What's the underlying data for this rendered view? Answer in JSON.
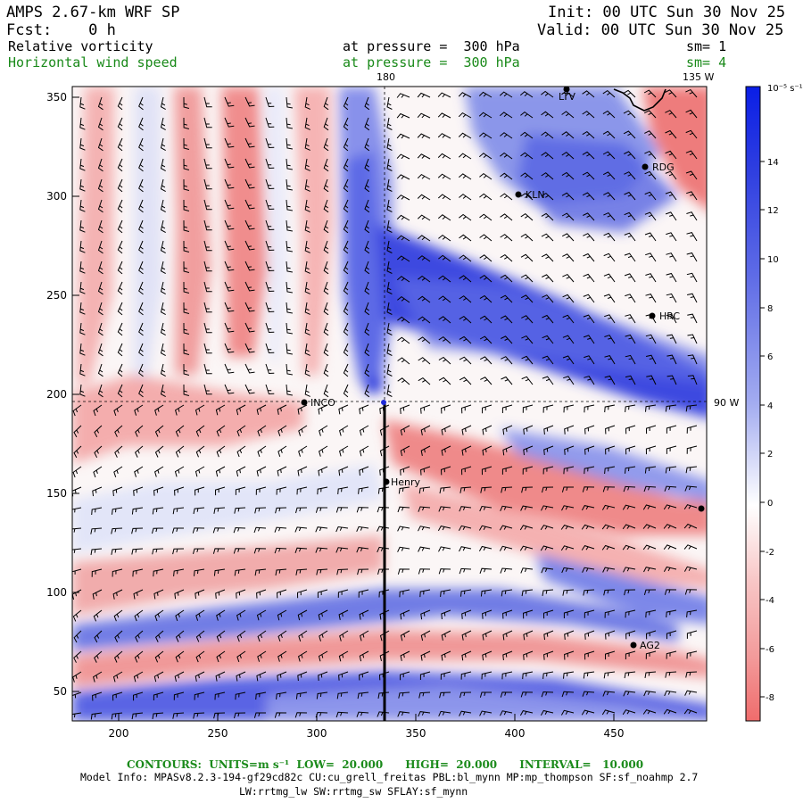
{
  "header": {
    "model": "AMPS 2.67-km WRF SP",
    "fcst": "Fcst:    0 h",
    "init": "Init: 00 UTC Sun 30 Nov 25",
    "valid": "Valid: 00 UTC Sun 30 Nov 25"
  },
  "fields": [
    {
      "name": "Relative vorticity",
      "level": "at pressure =  300 hPa",
      "smooth": "sm= 1",
      "color": "#000000"
    },
    {
      "name": "Horizontal wind speed",
      "level": "at pressure =  300 hPa",
      "smooth": "sm= 4",
      "color": "#1a8a1a"
    }
  ],
  "map": {
    "x_ticks": [
      "200",
      "250",
      "300",
      "350",
      "400",
      "450"
    ],
    "y_ticks": [
      "50",
      "100",
      "150",
      "200",
      "250",
      "300",
      "350"
    ],
    "lon_labels": {
      "top_180": "180",
      "top_135w": "135 W",
      "right_90w": "90 W"
    },
    "stations": [
      {
        "id": "LTV",
        "label": "LTV"
      },
      {
        "id": "RDG",
        "label": "RDG"
      },
      {
        "id": "KLN",
        "label": "KLN"
      },
      {
        "id": "HRC",
        "label": "HRC"
      },
      {
        "id": "INCO",
        "label": "INCO"
      },
      {
        "id": "Henry",
        "label": "Henry"
      },
      {
        "id": "AG2",
        "label": "AG2"
      },
      {
        "id": "EDGE",
        "label": ""
      }
    ]
  },
  "colorbar": {
    "unit": "10⁻⁵ s⁻¹",
    "labels": [
      "14",
      "12",
      "10",
      "8",
      "6",
      "4",
      "2",
      "0",
      "-2",
      "-4",
      "-6",
      "-8"
    ],
    "colors": {
      "max_blue": "#0a1ee6",
      "zero": "#ffffff",
      "min_red": "#f06c6c"
    }
  },
  "footer": {
    "contours": "CONTOURS:  UNITS=m s⁻¹  LOW=  20.000      HIGH=  20.000      INTERVAL=   10.000",
    "model_info": "Model Info: MPASv8.2.3-194-gf29cd82c CU:cu_grell_freitas PBL:bl_mynn MP:mp_thompson SF:sf_noahmp 2.7",
    "physics": "LW:rrtmg_lw SW:rrtmg_sw SFLAY:sf_mynn"
  }
}
